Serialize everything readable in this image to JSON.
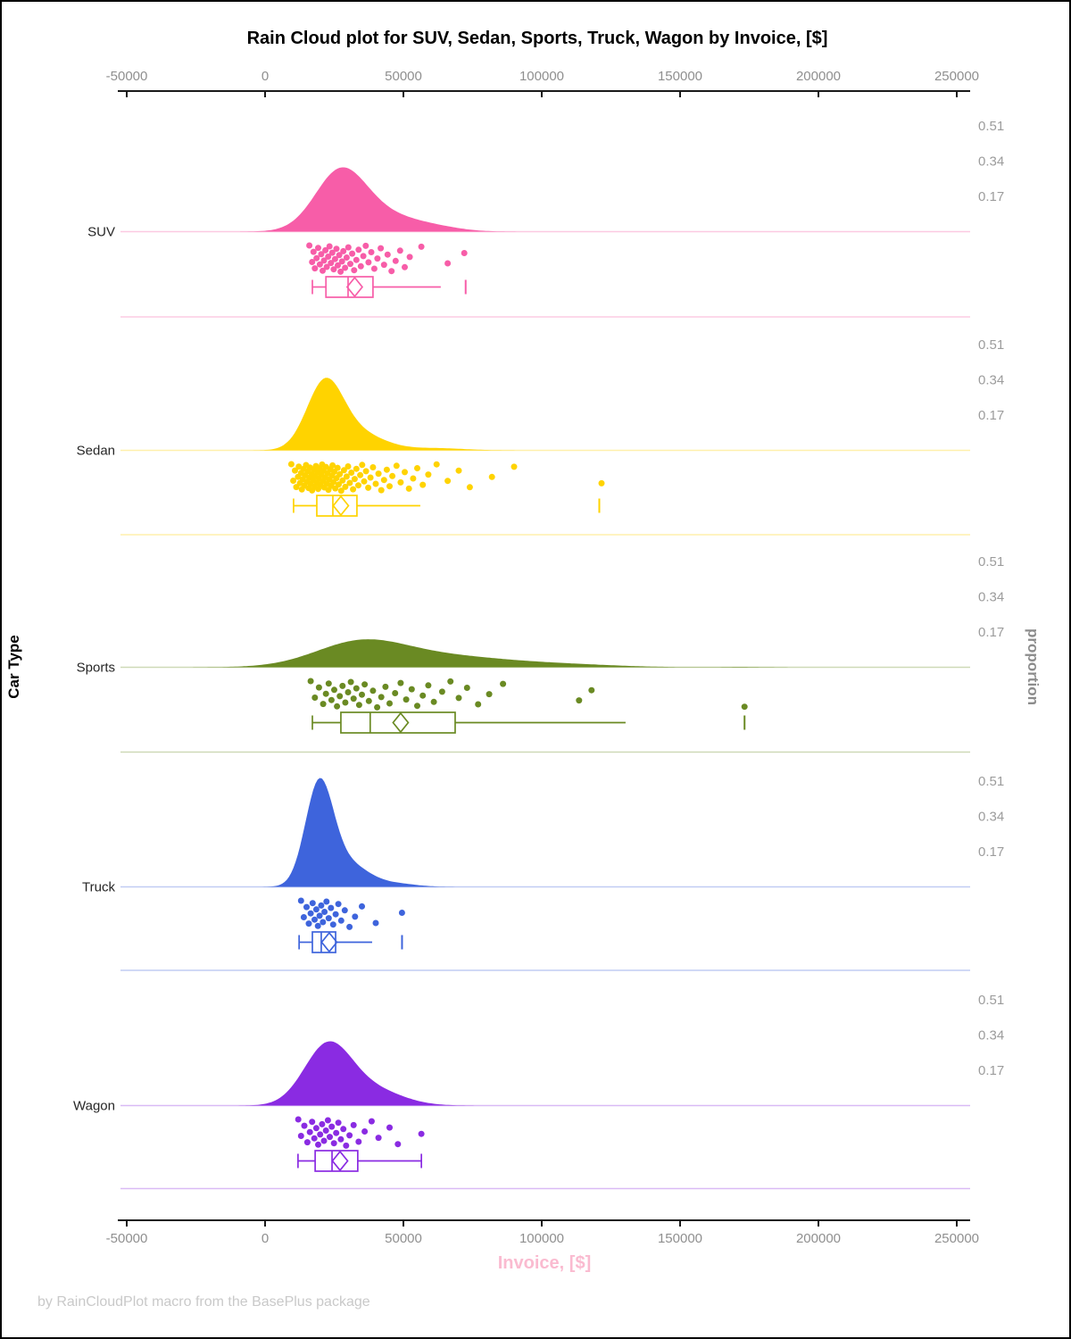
{
  "title": "Rain Cloud plot for SUV, Sedan, Sports, Truck, Wagon by Invoice, [$]",
  "footer": "by RainCloudPlot macro from the BasePlus package",
  "x_axis": {
    "label": "Invoice, [$]",
    "label_color": "#FABBD0",
    "ticks": [
      -50000,
      0,
      50000,
      100000,
      150000,
      200000,
      250000
    ],
    "range": [
      -52000,
      255000
    ]
  },
  "y_axis_left": {
    "label": "Car Type"
  },
  "y_axis_right": {
    "label": "proportion",
    "ticks": [
      0.51,
      0.34,
      0.17
    ]
  },
  "chart_data": {
    "type": "raincloud",
    "x_variable": "Invoice, [$]",
    "group_variable": "Car Type",
    "categories": [
      "SUV",
      "Sedan",
      "Sports",
      "Truck",
      "Wagon"
    ],
    "legend_position": "none",
    "grid": false,
    "series": [
      {
        "name": "SUV",
        "color": "#F75DA8",
        "density_peak_proportion": 0.31,
        "density_components": [
          [
            27000,
            9000,
            1.0
          ],
          [
            40000,
            14000,
            0.35
          ],
          [
            63000,
            9000,
            0.045
          ]
        ],
        "density_range": [
          -9000,
          95000
        ],
        "box": {
          "whisker_low": 17100,
          "q1": 22000,
          "median": 30000,
          "mean": 32400,
          "q3": 39000,
          "whisker_high": 63500,
          "far_outlier": 72500,
          "right_cap": false
        },
        "points": [
          16000,
          17000,
          17500,
          18000,
          18600,
          19200,
          19800,
          20300,
          20800,
          21300,
          21800,
          22300,
          22800,
          23300,
          23800,
          24300,
          24800,
          25300,
          25800,
          26300,
          26800,
          27300,
          27800,
          28300,
          28900,
          29500,
          30100,
          30800,
          31500,
          32200,
          33000,
          33800,
          34600,
          35500,
          36400,
          37400,
          38400,
          39500,
          40600,
          41800,
          43000,
          44300,
          45700,
          47200,
          48800,
          50500,
          52300,
          56500,
          66000,
          72000
        ]
      },
      {
        "name": "Sedan",
        "color": "#FFD300",
        "density_peak_proportion": 0.35,
        "density_components": [
          [
            21500,
            6500,
            1.0
          ],
          [
            32000,
            10000,
            0.3
          ],
          [
            62000,
            10000,
            0.035
          ]
        ],
        "density_range": [
          -7000,
          92000
        ],
        "box": {
          "whisker_low": 10300,
          "q1": 18700,
          "median": 24500,
          "mean": 27400,
          "q3": 33200,
          "whisker_high": 56100,
          "far_outlier": 120800,
          "right_cap": false
        },
        "points": [
          9500,
          10200,
          10800,
          11300,
          11900,
          12200,
          12600,
          13000,
          13300,
          13600,
          13900,
          14200,
          14500,
          14800,
          15100,
          15400,
          15700,
          16000,
          16200,
          16500,
          16800,
          17000,
          17300,
          17600,
          17900,
          18100,
          18400,
          18700,
          19000,
          19200,
          19500,
          19800,
          20000,
          20300,
          20600,
          20900,
          21100,
          21400,
          21700,
          22000,
          22300,
          22600,
          22900,
          23200,
          23500,
          23800,
          24100,
          24400,
          24700,
          25000,
          25400,
          25800,
          26200,
          26600,
          27000,
          27500,
          28000,
          28500,
          29000,
          29500,
          30000,
          30600,
          31200,
          31800,
          32400,
          33000,
          33700,
          34400,
          35100,
          35800,
          36500,
          37300,
          38100,
          39000,
          40000,
          41000,
          42000,
          43000,
          44000,
          45000,
          46000,
          47500,
          49000,
          50500,
          52000,
          53500,
          55000,
          57000,
          59000,
          62000,
          66000,
          70000,
          74000,
          82000,
          90000,
          121600
        ]
      },
      {
        "name": "Sports",
        "color": "#6A8A23",
        "density_peak_proportion": 0.135,
        "density_components": [
          [
            34000,
            16000,
            1.0
          ],
          [
            62000,
            26000,
            0.55
          ],
          [
            112000,
            18000,
            0.09
          ],
          [
            172000,
            8000,
            0.02
          ]
        ],
        "density_range": [
          -26000,
          205000
        ],
        "box": {
          "whisker_low": 17100,
          "q1": 27400,
          "median": 38000,
          "mean": 49000,
          "q3": 68700,
          "whisker_high": 130300,
          "far_outlier": 173300,
          "right_cap": false
        },
        "points": [
          16500,
          18000,
          19500,
          21000,
          22000,
          23000,
          24000,
          25000,
          26000,
          27000,
          28000,
          29000,
          30000,
          31000,
          32000,
          33000,
          34000,
          35000,
          36000,
          37500,
          39000,
          40500,
          42000,
          43500,
          45000,
          47000,
          49000,
          51000,
          53000,
          55000,
          57000,
          59000,
          61000,
          64000,
          67000,
          70000,
          73000,
          77000,
          81000,
          86000,
          113500,
          118000,
          173300
        ]
      },
      {
        "name": "Truck",
        "color": "#3E64DC",
        "density_peak_proportion": 0.525,
        "density_components": [
          [
            19500,
            5000,
            1.0
          ],
          [
            29000,
            8000,
            0.25
          ],
          [
            48000,
            7000,
            0.03
          ]
        ],
        "density_range": [
          -5000,
          70000
        ],
        "box": {
          "whisker_low": 12300,
          "q1": 17100,
          "median": 20300,
          "mean": 23200,
          "q3": 25500,
          "whisker_high": 38700,
          "far_outlier": 49500,
          "right_cap": false
        },
        "points": [
          13000,
          14000,
          15000,
          15800,
          16500,
          17200,
          17900,
          18500,
          19100,
          19700,
          20300,
          20900,
          21500,
          22200,
          23000,
          23800,
          24600,
          25500,
          26500,
          27500,
          28800,
          30500,
          32500,
          35000,
          40000,
          49500
        ]
      },
      {
        "name": "Wagon",
        "color": "#8A2BE2",
        "density_peak_proportion": 0.31,
        "density_components": [
          [
            22500,
            8500,
            1.0
          ],
          [
            38000,
            11000,
            0.28
          ]
        ],
        "density_range": [
          -13000,
          85000
        ],
        "box": {
          "whisker_low": 11900,
          "q1": 18100,
          "median": 24200,
          "mean": 27100,
          "q3": 33500,
          "whisker_high": 56500,
          "far_outlier": null,
          "right_cap": true
        },
        "points": [
          12000,
          13000,
          14200,
          15300,
          16200,
          17000,
          17800,
          18500,
          19200,
          19900,
          20600,
          21300,
          22000,
          22700,
          23400,
          24100,
          24900,
          25700,
          26500,
          27400,
          28300,
          29300,
          30500,
          32000,
          33800,
          36000,
          38500,
          41000,
          45000,
          48000,
          56500
        ]
      }
    ]
  }
}
